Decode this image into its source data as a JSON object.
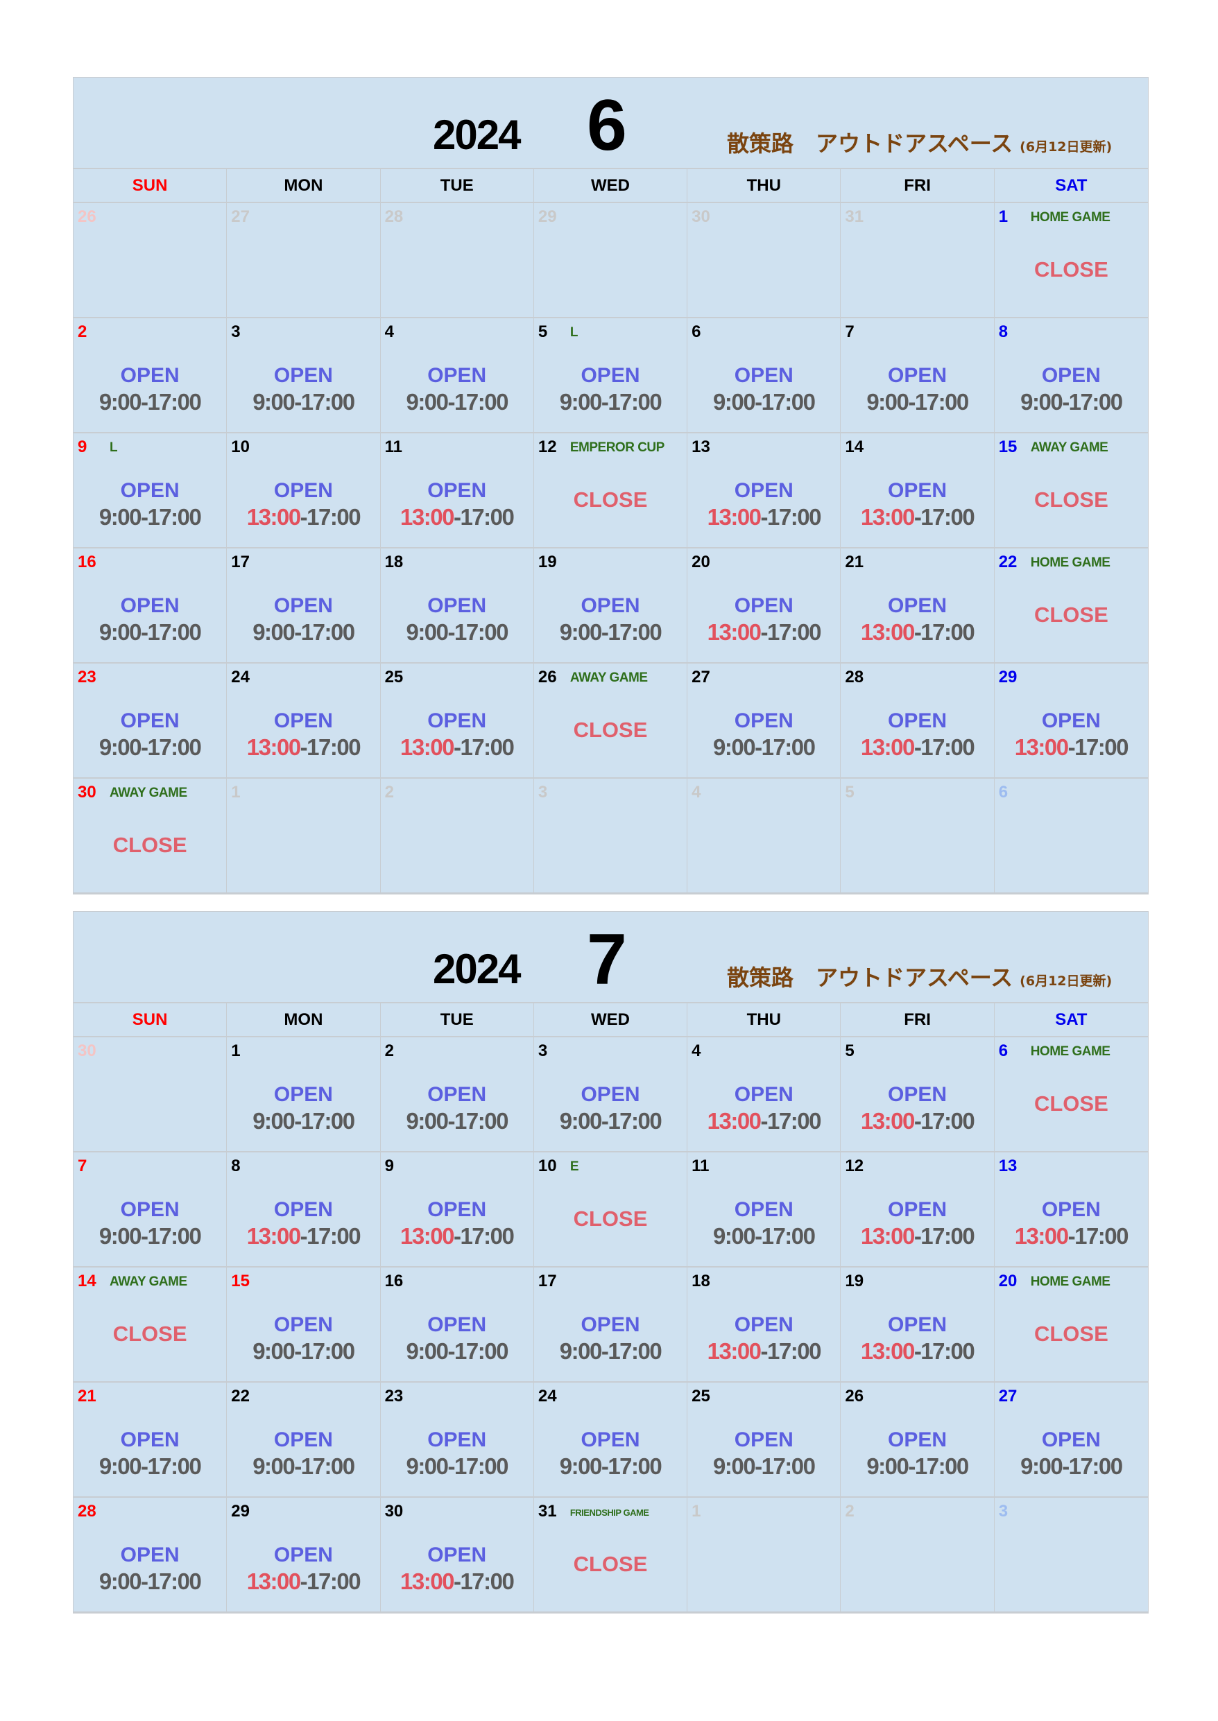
{
  "labels": {
    "open": "OPEN",
    "close": "CLOSE",
    "end_time": "-17:00"
  },
  "colors": {
    "background": "#cfe1f0",
    "open": "#5b5fe0",
    "close": "#e0606c",
    "late_start": "#e2515d",
    "event": "#2f6f1c",
    "title": "#7a4410"
  },
  "weekdays": [
    {
      "label": "SUN",
      "tone": "red"
    },
    {
      "label": "MON",
      "tone": "black"
    },
    {
      "label": "TUE",
      "tone": "black"
    },
    {
      "label": "WED",
      "tone": "black"
    },
    {
      "label": "THU",
      "tone": "black"
    },
    {
      "label": "FRI",
      "tone": "black"
    },
    {
      "label": "SAT",
      "tone": "blue"
    }
  ],
  "calendars": [
    {
      "year": "2024",
      "month": "6",
      "title": "散策路　アウトドアスペース",
      "updated": "(6月12日更新)",
      "cells": [
        {
          "day": "26",
          "tone": "muted-red"
        },
        {
          "day": "27",
          "tone": "muted"
        },
        {
          "day": "28",
          "tone": "muted"
        },
        {
          "day": "29",
          "tone": "muted"
        },
        {
          "day": "30",
          "tone": "muted"
        },
        {
          "day": "31",
          "tone": "muted"
        },
        {
          "day": "1",
          "tone": "blue",
          "event": "HOME GAME",
          "status": "close"
        },
        {
          "day": "2",
          "tone": "red",
          "status": "open",
          "start": "9:00"
        },
        {
          "day": "3",
          "tone": "black",
          "status": "open",
          "start": "9:00"
        },
        {
          "day": "4",
          "tone": "black",
          "status": "open",
          "start": "9:00"
        },
        {
          "day": "5",
          "tone": "black",
          "event": "L",
          "status": "open",
          "start": "9:00"
        },
        {
          "day": "6",
          "tone": "black",
          "status": "open",
          "start": "9:00"
        },
        {
          "day": "7",
          "tone": "black",
          "status": "open",
          "start": "9:00"
        },
        {
          "day": "8",
          "tone": "blue",
          "status": "open",
          "start": "9:00"
        },
        {
          "day": "9",
          "tone": "red",
          "event": "L",
          "status": "open",
          "start": "9:00"
        },
        {
          "day": "10",
          "tone": "black",
          "status": "open",
          "start": "13:00"
        },
        {
          "day": "11",
          "tone": "black",
          "status": "open",
          "start": "13:00"
        },
        {
          "day": "12",
          "tone": "black",
          "event": "EMPEROR CUP",
          "status": "close"
        },
        {
          "day": "13",
          "tone": "black",
          "status": "open",
          "start": "13:00"
        },
        {
          "day": "14",
          "tone": "black",
          "status": "open",
          "start": "13:00"
        },
        {
          "day": "15",
          "tone": "blue",
          "event": "AWAY GAME",
          "status": "close"
        },
        {
          "day": "16",
          "tone": "red",
          "status": "open",
          "start": "9:00"
        },
        {
          "day": "17",
          "tone": "black",
          "status": "open",
          "start": "9:00"
        },
        {
          "day": "18",
          "tone": "black",
          "status": "open",
          "start": "9:00"
        },
        {
          "day": "19",
          "tone": "black",
          "status": "open",
          "start": "9:00"
        },
        {
          "day": "20",
          "tone": "black",
          "status": "open",
          "start": "13:00"
        },
        {
          "day": "21",
          "tone": "black",
          "status": "open",
          "start": "13:00"
        },
        {
          "day": "22",
          "tone": "blue",
          "event": "HOME GAME",
          "status": "close"
        },
        {
          "day": "23",
          "tone": "red",
          "status": "open",
          "start": "9:00"
        },
        {
          "day": "24",
          "tone": "black",
          "status": "open",
          "start": "13:00"
        },
        {
          "day": "25",
          "tone": "black",
          "status": "open",
          "start": "13:00"
        },
        {
          "day": "26",
          "tone": "black",
          "event": "AWAY GAME",
          "status": "close"
        },
        {
          "day": "27",
          "tone": "black",
          "status": "open",
          "start": "9:00"
        },
        {
          "day": "28",
          "tone": "black",
          "status": "open",
          "start": "13:00"
        },
        {
          "day": "29",
          "tone": "blue",
          "status": "open",
          "start": "13:00"
        },
        {
          "day": "30",
          "tone": "red",
          "event": "AWAY GAME",
          "status": "close"
        },
        {
          "day": "1",
          "tone": "muted"
        },
        {
          "day": "2",
          "tone": "muted"
        },
        {
          "day": "3",
          "tone": "muted"
        },
        {
          "day": "4",
          "tone": "muted"
        },
        {
          "day": "5",
          "tone": "muted"
        },
        {
          "day": "6",
          "tone": "muted-blue"
        }
      ]
    },
    {
      "year": "2024",
      "month": "7",
      "title": "散策路　アウトドアスペース",
      "updated": "(6月12日更新)",
      "cells": [
        {
          "day": "30",
          "tone": "muted-red"
        },
        {
          "day": "1",
          "tone": "black",
          "status": "open",
          "start": "9:00"
        },
        {
          "day": "2",
          "tone": "black",
          "status": "open",
          "start": "9:00"
        },
        {
          "day": "3",
          "tone": "black",
          "status": "open",
          "start": "9:00"
        },
        {
          "day": "4",
          "tone": "black",
          "status": "open",
          "start": "13:00"
        },
        {
          "day": "5",
          "tone": "black",
          "status": "open",
          "start": "13:00"
        },
        {
          "day": "6",
          "tone": "blue",
          "event": "HOME GAME",
          "status": "close"
        },
        {
          "day": "7",
          "tone": "red",
          "status": "open",
          "start": "9:00"
        },
        {
          "day": "8",
          "tone": "black",
          "status": "open",
          "start": "13:00"
        },
        {
          "day": "9",
          "tone": "black",
          "status": "open",
          "start": "13:00"
        },
        {
          "day": "10",
          "tone": "black",
          "event": "E",
          "status": "close"
        },
        {
          "day": "11",
          "tone": "black",
          "status": "open",
          "start": "9:00"
        },
        {
          "day": "12",
          "tone": "black",
          "status": "open",
          "start": "13:00"
        },
        {
          "day": "13",
          "tone": "blue",
          "status": "open",
          "start": "13:00"
        },
        {
          "day": "14",
          "tone": "red",
          "event": "AWAY GAME",
          "status": "close"
        },
        {
          "day": "15",
          "tone": "red",
          "status": "open",
          "start": "9:00"
        },
        {
          "day": "16",
          "tone": "black",
          "status": "open",
          "start": "9:00"
        },
        {
          "day": "17",
          "tone": "black",
          "status": "open",
          "start": "9:00"
        },
        {
          "day": "18",
          "tone": "black",
          "status": "open",
          "start": "13:00"
        },
        {
          "day": "19",
          "tone": "black",
          "status": "open",
          "start": "13:00"
        },
        {
          "day": "20",
          "tone": "blue",
          "event": "HOME GAME",
          "status": "close"
        },
        {
          "day": "21",
          "tone": "red",
          "status": "open",
          "start": "9:00"
        },
        {
          "day": "22",
          "tone": "black",
          "status": "open",
          "start": "9:00"
        },
        {
          "day": "23",
          "tone": "black",
          "status": "open",
          "start": "9:00"
        },
        {
          "day": "24",
          "tone": "black",
          "status": "open",
          "start": "9:00"
        },
        {
          "day": "25",
          "tone": "black",
          "status": "open",
          "start": "9:00"
        },
        {
          "day": "26",
          "tone": "black",
          "status": "open",
          "start": "9:00"
        },
        {
          "day": "27",
          "tone": "blue",
          "status": "open",
          "start": "9:00"
        },
        {
          "day": "28",
          "tone": "red",
          "status": "open",
          "start": "9:00"
        },
        {
          "day": "29",
          "tone": "black",
          "status": "open",
          "start": "13:00"
        },
        {
          "day": "30",
          "tone": "black",
          "status": "open",
          "start": "13:00"
        },
        {
          "day": "31",
          "tone": "black",
          "event": "FRIENDSHIP GAME",
          "status": "close"
        },
        {
          "day": "1",
          "tone": "muted"
        },
        {
          "day": "2",
          "tone": "muted"
        },
        {
          "day": "3",
          "tone": "muted-blue"
        }
      ]
    }
  ]
}
